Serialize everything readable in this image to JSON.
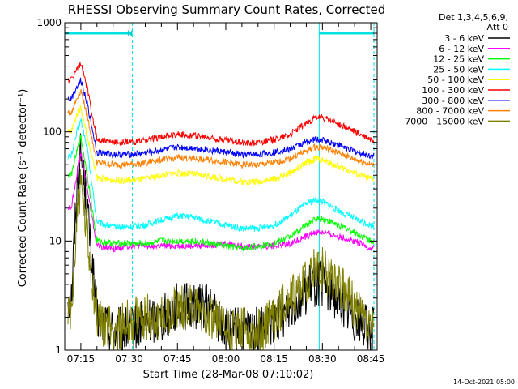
{
  "chart_data": {
    "type": "line",
    "title": "RHESSI Observing Summary Count Rates, Corrected",
    "xlabel": "Start Time (28-Mar-08 07:10:02)",
    "ylabel": "Corrected Count Rate (s⁻¹ detector⁻¹)",
    "y_scale": "log",
    "ylim": [
      1,
      1000
    ],
    "xlim": [
      "07:10",
      "08:47"
    ],
    "x_ticks": [
      "07:15",
      "07:30",
      "07:45",
      "08:00",
      "08:15",
      "08:30",
      "08:45"
    ],
    "y_ticks": [
      "1",
      "10",
      "100",
      "1000"
    ],
    "legend_header": [
      "Det 1,3,4,5,6,9,",
      "Att 0"
    ],
    "legend_position": "top-right, outside plot",
    "timestamp": "14-Oct-2021 05:00",
    "annotation": "N",
    "night_bars": [
      [
        "07:10",
        "07:31"
      ],
      [
        "08:29",
        "08:46"
      ]
    ],
    "markers": [
      [
        "07:31",
        "dashed"
      ],
      [
        "08:29",
        "solid"
      ],
      [
        "08:46",
        "dashed"
      ]
    ],
    "x": [
      "07:12",
      "07:14",
      "07:15",
      "07:17",
      "07:20",
      "07:25",
      "07:30",
      "07:35",
      "07:40",
      "07:45",
      "07:50",
      "07:55",
      "08:00",
      "08:05",
      "08:10",
      "08:15",
      "08:20",
      "08:25",
      "08:28",
      "08:30",
      "08:35",
      "08:40",
      "08:45"
    ],
    "series": [
      {
        "name": "3 - 6 keV",
        "color": "#000000",
        "values": [
          3,
          40,
          65,
          20,
          2,
          1.5,
          1.5,
          1.8,
          2,
          2.5,
          2.5,
          2.5,
          1.5,
          1.5,
          1.5,
          1.8,
          2.5,
          3.5,
          4.2,
          4,
          3,
          2,
          1.5
        ]
      },
      {
        "name": "6 - 12 keV",
        "color": "#ff00ff",
        "values": [
          20,
          45,
          65,
          30,
          9,
          8.5,
          9,
          9,
          9,
          9,
          9,
          9.2,
          9.5,
          9,
          9,
          9,
          9.5,
          11,
          12,
          12,
          11,
          10,
          8.5
        ]
      },
      {
        "name": "12 - 25 keV",
        "color": "#00ff00",
        "values": [
          40,
          70,
          90,
          40,
          10,
          9.5,
          9.5,
          9.5,
          10,
          10,
          10,
          9.5,
          9,
          8.5,
          9,
          9.5,
          11,
          14,
          16,
          16,
          14,
          12,
          10
        ]
      },
      {
        "name": "25 - 50 keV",
        "color": "#00ffff",
        "values": [
          60,
          105,
          130,
          70,
          15,
          13.5,
          13.5,
          14,
          15.5,
          17,
          16.5,
          15,
          14,
          13,
          13,
          14,
          17,
          22,
          24,
          23,
          19,
          16,
          14
        ]
      },
      {
        "name": "50 - 100 keV",
        "color": "#ffff00",
        "values": [
          100,
          150,
          170,
          90,
          38,
          36,
          36,
          37,
          40,
          42,
          41,
          39,
          37,
          35,
          35,
          37,
          42,
          52,
          57,
          55,
          48,
          42,
          37
        ]
      },
      {
        "name": "100 - 300 keV",
        "color": "#ff0000",
        "values": [
          300,
          390,
          420,
          250,
          85,
          80,
          80,
          83,
          90,
          95,
          93,
          88,
          84,
          80,
          80,
          85,
          95,
          120,
          135,
          135,
          118,
          100,
          85
        ]
      },
      {
        "name": "300 - 800 keV",
        "color": "#0000ff",
        "values": [
          200,
          270,
          300,
          180,
          65,
          62,
          62,
          64,
          68,
          72,
          71,
          68,
          65,
          62,
          62,
          65,
          70,
          80,
          86,
          84,
          76,
          66,
          60
        ]
      },
      {
        "name": "800 - 7000 keV",
        "color": "#ff8000",
        "values": [
          150,
          210,
          240,
          140,
          52,
          50,
          50,
          52,
          56,
          58,
          57,
          55,
          53,
          50,
          50,
          52,
          57,
          67,
          73,
          72,
          64,
          56,
          50
        ]
      },
      {
        "name": "7000 - 15000 keV",
        "color": "#808000",
        "values": [
          2,
          20,
          32,
          10,
          2,
          1.5,
          1.8,
          2,
          2,
          2.5,
          2.5,
          2.2,
          1.5,
          1.5,
          1.5,
          2,
          3,
          4.5,
          5.5,
          5.5,
          4,
          2.5,
          1.5
        ]
      }
    ]
  }
}
